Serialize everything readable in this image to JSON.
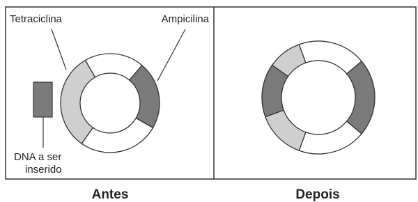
{
  "panels": [
    {
      "title": "Antes",
      "labels": {
        "left_gene": "Tetraciclina",
        "right_gene": "Ampicilina",
        "insert": [
          "DNA a ser",
          "inserido"
        ]
      }
    },
    {
      "title": "Depois"
    }
  ]
}
